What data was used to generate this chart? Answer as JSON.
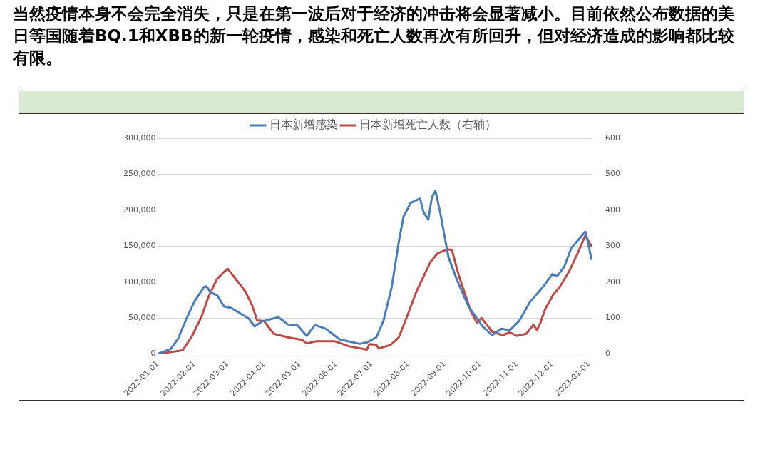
{
  "chart_data": {
    "type": "line",
    "title": "当然疫情本身不会完全消失，只是在第一波后对于经济的冲击将会显著减小。目前依然公布数据的美日等国随着BQ.1和XBB的新一轮疫情，感染和死亡人数再次有所回升，但对经济造成的影响都比较有限。",
    "xlim": [
      "2022-01-01",
      "2023-01-04"
    ],
    "xticks": [
      "2022-01-01",
      "2022-02-01",
      "2022-03-01",
      "2022-04-01",
      "2022-05-01",
      "2022-06-01",
      "2022-07-01",
      "2022-08-01",
      "2022-09-01",
      "2022-10-01",
      "2022-11-01",
      "2022-12-01",
      "2023-01-01"
    ],
    "ylim": [
      0,
      300000
    ],
    "yticks": [
      {
        "value": 0,
        "label": "0"
      },
      {
        "value": 50000,
        "label": "50,000"
      },
      {
        "value": 100000,
        "label": "100,000"
      },
      {
        "value": 150000,
        "label": "150,000"
      },
      {
        "value": 200000,
        "label": "200,000"
      },
      {
        "value": 250000,
        "label": "250,000"
      },
      {
        "value": 300000,
        "label": "300,000"
      }
    ],
    "y2lim": [
      0,
      600
    ],
    "y2ticks": [
      0,
      100,
      200,
      300,
      400,
      500,
      600
    ],
    "grid": "y",
    "legend": "top",
    "marker": "none",
    "line_style": "solid",
    "series": [
      {
        "name": "日本新增感染",
        "color": "#4a7ebb",
        "x": [
          "2022-01-01",
          "2022-01-12",
          "2022-01-18",
          "2022-01-26",
          "2022-02-01",
          "2022-02-09",
          "2022-02-11",
          "2022-02-15",
          "2022-02-20",
          "2022-02-26",
          "2022-03-04",
          "2022-03-12",
          "2022-03-19",
          "2022-03-24",
          "2022-03-30",
          "2022-04-13",
          "2022-04-21",
          "2022-04-29",
          "2022-05-07",
          "2022-05-14",
          "2022-05-23",
          "2022-06-04",
          "2022-06-21",
          "2022-06-27",
          "2022-07-05",
          "2022-07-11",
          "2022-07-18",
          "2022-07-24",
          "2022-07-28",
          "2022-08-03",
          "2022-08-11",
          "2022-08-14",
          "2022-08-18",
          "2022-08-21",
          "2022-08-24",
          "2022-08-28",
          "2022-09-04",
          "2022-09-11",
          "2022-09-21",
          "2022-09-27",
          "2022-10-03",
          "2022-10-11",
          "2022-10-19",
          "2022-10-26",
          "2022-11-03",
          "2022-11-12",
          "2022-11-23",
          "2022-12-01",
          "2022-12-05",
          "2022-12-11",
          "2022-12-17",
          "2022-12-29",
          "2023-01-01",
          "2023-01-03"
        ],
        "values": [
          0,
          7000,
          21000,
          52000,
          73000,
          93000,
          94000,
          85000,
          82000,
          66000,
          64000,
          56000,
          49000,
          38000,
          45000,
          51000,
          41000,
          40000,
          25000,
          40000,
          35000,
          20000,
          14000,
          16000,
          23000,
          46000,
          93000,
          156000,
          191000,
          210000,
          216000,
          197000,
          187000,
          218000,
          227000,
          197000,
          135000,
          104000,
          66000,
          52000,
          38000,
          26000,
          35000,
          33000,
          46000,
          72000,
          93000,
          111000,
          108000,
          121000,
          147000,
          170000,
          149000,
          132000
        ]
      },
      {
        "name": "日本新增死亡人数（右轴）",
        "color": "#be4b48",
        "axis": "y2",
        "x": [
          "2022-01-01",
          "2022-01-22",
          "2022-01-30",
          "2022-02-07",
          "2022-02-13",
          "2022-02-20",
          "2022-02-26",
          "2022-03-01",
          "2022-03-08",
          "2022-03-16",
          "2022-03-22",
          "2022-03-26",
          "2022-04-01",
          "2022-04-09",
          "2022-04-21",
          "2022-05-03",
          "2022-05-07",
          "2022-05-15",
          "2022-05-31",
          "2022-06-12",
          "2022-06-27",
          "2022-06-29",
          "2022-07-05",
          "2022-07-07",
          "2022-07-17",
          "2022-07-24",
          "2022-07-31",
          "2022-08-08",
          "2022-08-14",
          "2022-08-20",
          "2022-08-26",
          "2022-09-03",
          "2022-09-07",
          "2022-09-13",
          "2022-09-23",
          "2022-09-28",
          "2022-10-02",
          "2022-10-11",
          "2022-10-20",
          "2022-10-26",
          "2022-11-01",
          "2022-11-09",
          "2022-11-15",
          "2022-11-18",
          "2022-11-21",
          "2022-11-25",
          "2022-12-02",
          "2022-12-07",
          "2022-12-15",
          "2022-12-23",
          "2022-12-29",
          "2023-01-01",
          "2023-01-03"
        ],
        "values": [
          0,
          10,
          50,
          104,
          160,
          208,
          228,
          237,
          208,
          174,
          133,
          93,
          91,
          56,
          46,
          39,
          29,
          35,
          35,
          21,
          12,
          27,
          25,
          15,
          25,
          46,
          104,
          174,
          216,
          257,
          280,
          291,
          289,
          216,
          118,
          87,
          100,
          62,
          52,
          60,
          50,
          56,
          81,
          66,
          87,
          125,
          166,
          185,
          228,
          284,
          330,
          311,
          301
        ]
      }
    ]
  }
}
